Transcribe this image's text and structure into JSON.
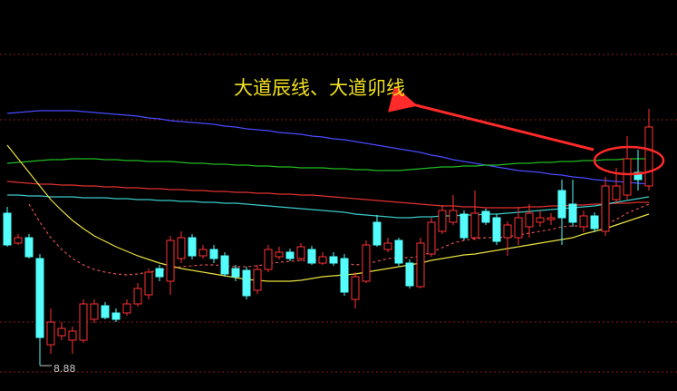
{
  "chart_data": {
    "type": "candlestick",
    "annotation": "大道辰线、大道卯线",
    "low_marker": 8.88,
    "ylim": [
      8.6,
      12.91
    ],
    "gridlines": [
      12.31,
      11.59,
      9.36,
      8.81
    ],
    "up_color": "#ff3232",
    "down_color": "#54fcfc",
    "open": [
      10.56,
      10.23,
      10.29,
      10.06,
      9.11,
      9.21,
      9.16,
      9.16,
      9.39,
      9.54,
      9.46,
      9.46,
      9.56,
      9.66,
      9.95,
      9.81,
      10.06,
      10.29,
      10.09,
      10.16,
      10.09,
      9.95,
      9.93,
      9.71,
      9.94,
      10.08,
      10.13,
      10.06,
      10.16,
      10.01,
      10.08,
      10.06,
      9.61,
      9.81,
      10.46,
      10.16,
      10.26,
      10.01,
      9.75,
      10.11,
      10.36,
      10.46,
      10.55,
      10.29,
      10.58,
      10.51,
      10.29,
      10.29,
      10.41,
      10.46,
      10.49,
      10.81,
      10.66,
      10.41,
      10.53,
      10.36,
      10.71,
      10.76,
      11.01,
      10.86
    ],
    "close": [
      10.21,
      10.29,
      10.08,
      9.19,
      9.36,
      9.29,
      9.26,
      9.56,
      9.56,
      9.41,
      9.39,
      9.56,
      9.73,
      9.91,
      9.86,
      10.26,
      10.29,
      10.09,
      10.16,
      10.06,
      9.89,
      9.86,
      9.65,
      9.94,
      10.16,
      10.13,
      10.06,
      10.19,
      10.01,
      10.08,
      10.01,
      9.69,
      9.86,
      10.21,
      10.21,
      10.23,
      10.01,
      9.76,
      10.23,
      10.46,
      10.59,
      10.59,
      10.29,
      10.56,
      10.46,
      10.25,
      10.43,
      10.51,
      10.56,
      10.51,
      10.51,
      10.51,
      10.46,
      10.53,
      10.39,
      10.86,
      10.86,
      11.16,
      10.93,
      11.51
    ],
    "high": [
      10.63,
      10.33,
      10.33,
      10.11,
      9.51,
      9.36,
      9.31,
      9.61,
      9.61,
      9.58,
      9.51,
      9.61,
      9.79,
      9.95,
      9.99,
      10.31,
      10.36,
      10.33,
      10.21,
      10.21,
      10.13,
      9.99,
      9.97,
      9.99,
      10.21,
      10.19,
      10.17,
      10.23,
      10.2,
      10.13,
      10.13,
      10.11,
      9.91,
      10.26,
      10.54,
      10.29,
      10.29,
      10.05,
      10.29,
      10.51,
      10.65,
      10.76,
      10.59,
      10.81,
      10.61,
      10.55,
      10.47,
      10.63,
      10.66,
      10.59,
      10.56,
      10.93,
      10.93,
      10.59,
      10.57,
      10.96,
      11.06,
      11.41,
      11.26,
      11.71
    ],
    "low": [
      10.19,
      10.21,
      10.06,
      8.88,
      9.01,
      9.16,
      9.01,
      9.13,
      9.35,
      9.39,
      9.36,
      9.43,
      9.53,
      9.61,
      9.81,
      9.66,
      10.01,
      10.05,
      10.06,
      10.01,
      9.86,
      9.81,
      9.61,
      9.67,
      9.91,
      10.05,
      10.03,
      10.03,
      9.99,
      9.99,
      9.98,
      9.65,
      9.51,
      9.79,
      10.19,
      10.13,
      9.98,
      9.73,
      9.73,
      10.08,
      10.33,
      10.43,
      10.26,
      10.26,
      10.43,
      10.21,
      10.09,
      10.21,
      10.29,
      10.41,
      10.43,
      10.21,
      10.41,
      10.35,
      10.35,
      10.31,
      10.66,
      10.71,
      10.81,
      10.81
    ],
    "series": [
      {
        "color": "#4a4aff",
        "values": [
          11.66,
          11.67,
          11.68,
          11.69,
          11.69,
          11.69,
          11.69,
          11.68,
          11.67,
          11.66,
          11.65,
          11.64,
          11.63,
          11.61,
          11.6,
          11.58,
          11.57,
          11.56,
          11.55,
          11.54,
          11.52,
          11.51,
          11.49,
          11.48,
          11.47,
          11.45,
          11.44,
          11.43,
          11.41,
          11.4,
          11.38,
          11.37,
          11.35,
          11.33,
          11.31,
          11.29,
          11.27,
          11.25,
          11.23,
          11.2,
          11.18,
          11.15,
          11.13,
          11.11,
          11.09,
          11.07,
          11.05,
          11.03,
          11.02,
          11.01,
          10.99,
          10.98,
          10.96,
          10.95,
          10.93,
          10.92,
          10.91,
          10.9,
          10.89,
          10.88
        ]
      },
      {
        "color": "#22bb22",
        "values": [
          11.11,
          11.12,
          11.13,
          11.14,
          11.15,
          11.15,
          11.16,
          11.16,
          11.16,
          11.15,
          11.15,
          11.14,
          11.14,
          11.13,
          11.13,
          11.13,
          11.12,
          11.11,
          11.11,
          11.1,
          11.1,
          11.09,
          11.09,
          11.08,
          11.08,
          11.07,
          11.07,
          11.06,
          11.06,
          11.06,
          11.05,
          11.05,
          11.04,
          11.04,
          11.03,
          11.03,
          11.03,
          11.04,
          11.05,
          11.06,
          11.07,
          11.07,
          11.08,
          11.08,
          11.09,
          11.09,
          11.1,
          11.11,
          11.11,
          11.12,
          11.12,
          11.13,
          11.13,
          11.14,
          11.14,
          11.15,
          11.15,
          11.16,
          11.16,
          11.16
        ]
      },
      {
        "color": "#e03030",
        "values": [
          10.91,
          10.9,
          10.89,
          10.88,
          10.88,
          10.87,
          10.87,
          10.86,
          10.86,
          10.85,
          10.85,
          10.84,
          10.84,
          10.83,
          10.83,
          10.82,
          10.82,
          10.81,
          10.81,
          10.8,
          10.8,
          10.79,
          10.79,
          10.78,
          10.78,
          10.77,
          10.77,
          10.76,
          10.76,
          10.75,
          10.74,
          10.73,
          10.72,
          10.71,
          10.7,
          10.69,
          10.68,
          10.67,
          10.66,
          10.65,
          10.64,
          10.64,
          10.63,
          10.63,
          10.62,
          10.62,
          10.62,
          10.62,
          10.63,
          10.63,
          10.64,
          10.64,
          10.65,
          10.65,
          10.66,
          10.66,
          10.67,
          10.67,
          10.68,
          10.68
        ]
      },
      {
        "color": "#3cc8c8",
        "values": [
          10.76,
          10.76,
          10.75,
          10.75,
          10.74,
          10.74,
          10.74,
          10.73,
          10.73,
          10.73,
          10.72,
          10.72,
          10.71,
          10.71,
          10.7,
          10.7,
          10.69,
          10.69,
          10.68,
          10.68,
          10.67,
          10.67,
          10.66,
          10.65,
          10.64,
          10.63,
          10.62,
          10.61,
          10.6,
          10.59,
          10.58,
          10.57,
          10.55,
          10.54,
          10.53,
          10.52,
          10.51,
          10.51,
          10.52,
          10.52,
          10.53,
          10.53,
          10.54,
          10.54,
          10.55,
          10.55,
          10.56,
          10.57,
          10.58,
          10.59,
          10.6,
          10.61,
          10.62,
          10.63,
          10.64,
          10.66,
          10.68,
          10.7,
          10.72,
          10.74
        ]
      },
      {
        "color": "#e8e040",
        "values": [
          11.31,
          11.16,
          11.01,
          10.86,
          10.71,
          10.59,
          10.48,
          10.39,
          10.31,
          10.25,
          10.19,
          10.14,
          10.09,
          10.05,
          10.01,
          9.98,
          9.95,
          9.93,
          9.91,
          9.89,
          9.87,
          9.85,
          9.83,
          9.82,
          9.81,
          9.81,
          9.81,
          9.82,
          9.84,
          9.86,
          9.87,
          9.88,
          9.89,
          9.91,
          9.93,
          9.95,
          9.97,
          9.99,
          10.01,
          10.04,
          10.06,
          10.08,
          10.1,
          10.11,
          10.13,
          10.15,
          10.17,
          10.19,
          10.21,
          10.23,
          10.25,
          10.27,
          10.29,
          10.33,
          10.36,
          10.39,
          10.43,
          10.47,
          10.51,
          10.55
        ]
      },
      {
        "color": "#e05050",
        "dashed": true,
        "values": [
          null,
          null,
          10.66,
          10.46,
          10.29,
          10.16,
          10.06,
          9.99,
          9.94,
          9.91,
          9.89,
          9.88,
          9.89,
          9.91,
          9.93,
          9.95,
          9.97,
          9.98,
          9.99,
          9.99,
          9.98,
          9.97,
          9.97,
          9.98,
          10.0,
          10.02,
          10.03,
          10.04,
          10.04,
          10.04,
          10.03,
          10.01,
          9.99,
          10.0,
          10.03,
          10.06,
          10.07,
          10.07,
          10.09,
          10.13,
          10.18,
          10.23,
          10.26,
          10.28,
          10.29,
          10.29,
          10.3,
          10.32,
          10.34,
          10.36,
          10.38,
          10.41,
          10.42,
          10.42,
          10.41,
          10.44,
          10.49,
          10.56,
          10.61,
          10.66
        ]
      }
    ]
  }
}
